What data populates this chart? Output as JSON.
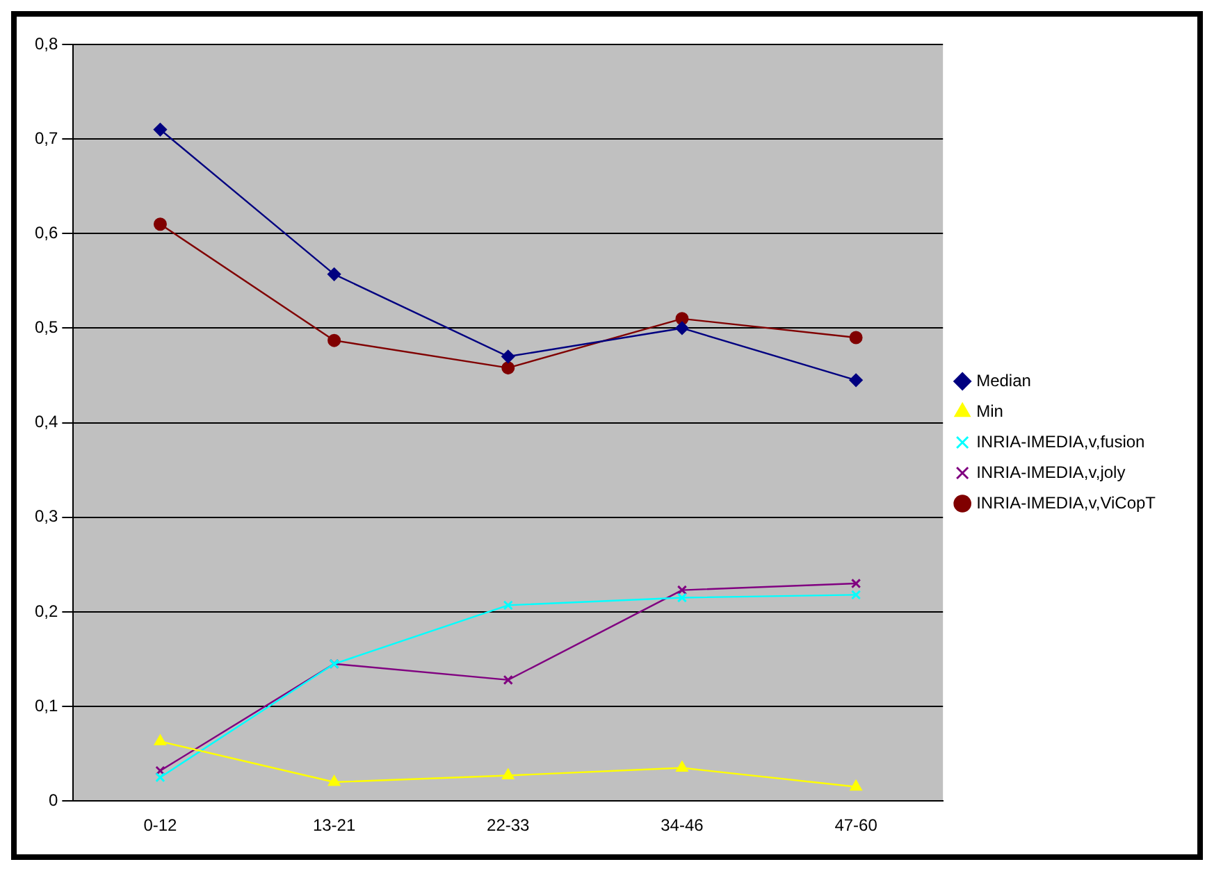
{
  "chart_data": {
    "type": "line",
    "categories": [
      "0-12",
      "13-21",
      "22-33",
      "34-46",
      "47-60"
    ],
    "series": [
      {
        "name": "Median",
        "color": "#000080",
        "marker": "diamond",
        "values": [
          0.71,
          0.557,
          0.47,
          0.5,
          0.445
        ]
      },
      {
        "name": "Min",
        "color": "#ffff00",
        "marker": "triangle",
        "values": [
          0.063,
          0.02,
          0.027,
          0.035,
          0.015
        ]
      },
      {
        "name": "INRIA-IMEDIA,v,fusion",
        "color": "#00ffff",
        "marker": "cross",
        "values": [
          0.025,
          0.145,
          0.207,
          0.215,
          0.218
        ]
      },
      {
        "name": "INRIA-IMEDIA,v,joly",
        "color": "#800080",
        "marker": "cross",
        "values": [
          0.032,
          0.145,
          0.128,
          0.223,
          0.23
        ]
      },
      {
        "name": "INRIA-IMEDIA,v,ViCopT",
        "color": "#800000",
        "marker": "circle",
        "values": [
          0.61,
          0.487,
          0.458,
          0.51,
          0.49
        ]
      }
    ],
    "ylim": [
      0,
      0.8
    ],
    "yticks": [
      0,
      {
        "value": 0.1,
        "label": "0,1"
      },
      {
        "value": 0.2,
        "label": "0,2"
      },
      {
        "value": 0.3,
        "label": "0,3"
      },
      {
        "value": 0.4,
        "label": "0,4"
      },
      {
        "value": 0.5,
        "label": "0,5"
      },
      {
        "value": 0.6,
        "label": "0,6"
      },
      {
        "value": 0.7,
        "label": "0,7"
      },
      {
        "value": 0.8,
        "label": "0,8"
      }
    ],
    "grid": "y",
    "legend": "right",
    "line_style": "solid"
  }
}
